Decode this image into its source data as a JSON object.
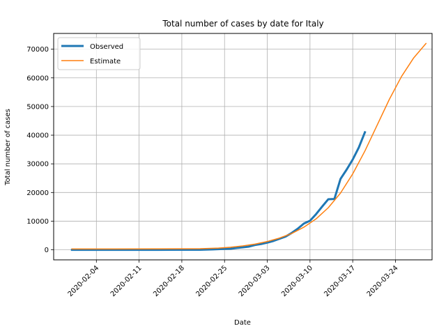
{
  "chart_data": {
    "type": "line",
    "title": "Total number of cases by date for Italy",
    "xlabel": "Date",
    "ylabel": "Total number of cases",
    "x_ticks": [
      "2020-02-04",
      "2020-02-11",
      "2020-02-18",
      "2020-02-25",
      "2020-03-03",
      "2020-03-10",
      "2020-03-17",
      "2020-03-24"
    ],
    "y_ticks": [
      0,
      10000,
      20000,
      30000,
      40000,
      50000,
      60000,
      70000
    ],
    "y_tick_labels": [
      "0",
      "10000",
      "20000",
      "30000",
      "40000",
      "50000",
      "60000",
      "70000"
    ],
    "xlim": [
      "2020-01-28",
      "2020-03-30"
    ],
    "ylim": [
      -3500,
      75500
    ],
    "grid": true,
    "legend_position": "top-left",
    "series": [
      {
        "name": "Observed",
        "color": "#1f77b4",
        "line_width": "thick",
        "points": [
          [
            "2020-01-31",
            2
          ],
          [
            "2020-02-07",
            3
          ],
          [
            "2020-02-14",
            3
          ],
          [
            "2020-02-21",
            20
          ],
          [
            "2020-02-22",
            79
          ],
          [
            "2020-02-23",
            150
          ],
          [
            "2020-02-24",
            229
          ],
          [
            "2020-02-25",
            322
          ],
          [
            "2020-02-26",
            400
          ],
          [
            "2020-02-27",
            650
          ],
          [
            "2020-02-28",
            888
          ],
          [
            "2020-02-29",
            1128
          ],
          [
            "2020-03-01",
            1694
          ],
          [
            "2020-03-02",
            2036
          ],
          [
            "2020-03-03",
            2502
          ],
          [
            "2020-03-04",
            3089
          ],
          [
            "2020-03-05",
            3858
          ],
          [
            "2020-03-06",
            4636
          ],
          [
            "2020-03-07",
            5883
          ],
          [
            "2020-03-08",
            7375
          ],
          [
            "2020-03-09",
            9172
          ],
          [
            "2020-03-10",
            10149
          ],
          [
            "2020-03-11",
            12462
          ],
          [
            "2020-03-12",
            15113
          ],
          [
            "2020-03-13",
            17660
          ],
          [
            "2020-03-14",
            17750
          ],
          [
            "2020-03-15",
            24747
          ],
          [
            "2020-03-16",
            27980
          ],
          [
            "2020-03-17",
            31506
          ],
          [
            "2020-03-18",
            35713
          ],
          [
            "2020-03-19",
            41035
          ]
        ]
      },
      {
        "name": "Estimate",
        "color": "#ff7f0e",
        "line_width": "thin",
        "points": [
          [
            "2020-01-31",
            300
          ],
          [
            "2020-02-07",
            300
          ],
          [
            "2020-02-14",
            320
          ],
          [
            "2020-02-21",
            400
          ],
          [
            "2020-02-24",
            600
          ],
          [
            "2020-02-26",
            900
          ],
          [
            "2020-02-28",
            1350
          ],
          [
            "2020-03-01",
            2000
          ],
          [
            "2020-03-03",
            2900
          ],
          [
            "2020-03-05",
            4100
          ],
          [
            "2020-03-07",
            5700
          ],
          [
            "2020-03-09",
            7900
          ],
          [
            "2020-03-11",
            10800
          ],
          [
            "2020-03-13",
            14700
          ],
          [
            "2020-03-15",
            19800
          ],
          [
            "2020-03-17",
            26500
          ],
          [
            "2020-03-19",
            34500
          ],
          [
            "2020-03-21",
            43500
          ],
          [
            "2020-03-23",
            52500
          ],
          [
            "2020-03-25",
            60500
          ],
          [
            "2020-03-27",
            67000
          ],
          [
            "2020-03-29",
            72000
          ]
        ]
      }
    ]
  }
}
